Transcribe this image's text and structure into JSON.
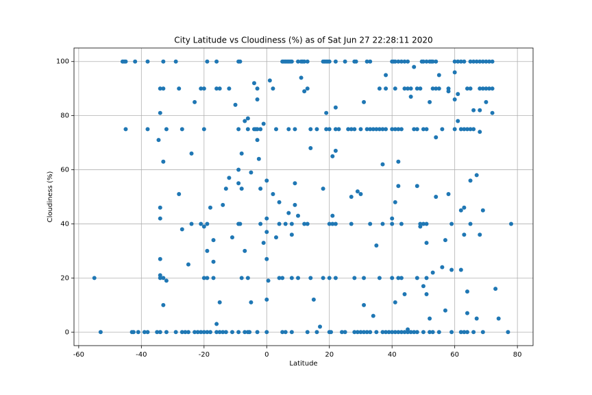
{
  "chart_data": {
    "type": "scatter",
    "title": "City Latitude vs Cloudiness (%) as of Sat Jun 27 22:28:11 2020",
    "x_label": "Latitude",
    "y_label": "Cloudiness (%)",
    "color": "#1f77b4",
    "grid": true,
    "xlim": [
      -61.5,
      85
    ],
    "ylim": [
      -5,
      105
    ],
    "xticks": [
      -60,
      -40,
      -20,
      0,
      20,
      40,
      60,
      80
    ],
    "yticks": [
      0,
      20,
      40,
      60,
      80,
      100
    ],
    "x": [
      -46,
      -45.5,
      -45,
      -42,
      -38,
      -33,
      -29,
      -19,
      -16,
      -9,
      -8.5,
      5,
      5.5,
      6,
      6.5,
      7,
      7.5,
      8,
      10,
      11,
      11.5,
      12,
      13,
      18,
      18.5,
      19,
      19.5,
      20,
      22,
      25,
      28,
      28.5,
      32,
      33,
      40,
      40.5,
      41,
      42,
      43,
      44,
      45,
      49.5,
      50,
      51,
      52,
      52.5,
      53,
      54,
      60,
      61,
      62,
      63,
      65,
      66,
      67,
      68,
      69,
      70,
      71,
      72,
      -45,
      -38,
      -32,
      -27,
      -20,
      -9,
      -6,
      -4,
      -3.5,
      -3,
      -2,
      3,
      7,
      9,
      14,
      16,
      19,
      20,
      22,
      23,
      26,
      27,
      28,
      30,
      32,
      33,
      34,
      35,
      36,
      37,
      38,
      40,
      41,
      42,
      43,
      47,
      48,
      50,
      51,
      56,
      60,
      62,
      63,
      64,
      65,
      66,
      -34,
      -33,
      -28,
      -21,
      -20,
      -16,
      -15,
      -12,
      -3,
      2,
      13,
      36,
      38,
      41,
      44,
      45,
      46,
      48,
      49,
      53,
      54,
      55,
      58,
      64,
      65,
      68,
      69,
      70,
      71,
      72,
      -43,
      -42.5,
      -41,
      -39,
      -38,
      -35,
      -34,
      -32,
      -29,
      -27,
      -26,
      -25,
      -23,
      -22,
      -21,
      -20,
      -19,
      -18,
      -16,
      -15,
      -14,
      -13,
      -11,
      -9,
      -7,
      -6,
      -5.5,
      -3,
      0,
      5,
      6,
      8,
      13,
      16,
      20,
      20.5,
      24,
      25,
      28,
      29,
      30,
      31,
      32,
      33,
      35,
      37,
      38,
      39,
      40,
      41,
      42,
      43,
      44,
      45,
      46,
      47,
      48,
      50,
      52,
      53,
      55,
      59,
      62,
      63,
      64,
      66,
      69,
      77,
      -24,
      -21,
      -19,
      -9,
      -8.5,
      -2,
      4,
      6,
      8,
      12,
      13,
      20,
      21,
      22,
      27,
      33,
      37,
      40,
      43,
      49,
      50,
      51,
      59,
      65,
      78,
      -55,
      -34,
      -33,
      -20,
      -19,
      -17,
      -8,
      -6,
      4,
      5,
      8,
      10,
      14,
      18,
      20,
      22,
      28,
      31,
      36,
      40,
      42,
      43,
      48,
      51,
      -53,
      -34.5,
      -34,
      -33,
      -34,
      -34,
      -34,
      -34,
      -33,
      -32,
      -28,
      -27,
      -25,
      -24,
      -23,
      -20,
      -19,
      -18,
      -17,
      -17,
      -16,
      -15,
      -14,
      -13,
      -12,
      -11,
      -10,
      -9,
      -9,
      -8,
      -8,
      -7,
      -7,
      -6,
      -5,
      -5,
      -4,
      -3,
      -3,
      -2.5,
      -2,
      -1,
      -1,
      0,
      0,
      0,
      0,
      0,
      0.5,
      1,
      2,
      3,
      4,
      7,
      8,
      9,
      9,
      10,
      11,
      12,
      14,
      15,
      17,
      18,
      19,
      21,
      21,
      22,
      22,
      27,
      29,
      30,
      31,
      31,
      34,
      35,
      37,
      38,
      40,
      41,
      41,
      42,
      42,
      44,
      45,
      46,
      47,
      48,
      49,
      50,
      51,
      51,
      52,
      52,
      53,
      54,
      54,
      55,
      56,
      57,
      58,
      58,
      57,
      59,
      60,
      60,
      61,
      61,
      62,
      62,
      63,
      63,
      64,
      64,
      65,
      66,
      67,
      67,
      68,
      68,
      68,
      69,
      70,
      72,
      73,
      74
    ],
    "values": [
      100,
      100,
      100,
      100,
      100,
      100,
      100,
      100,
      100,
      100,
      100,
      100,
      100,
      100,
      100,
      100,
      100,
      100,
      100,
      100,
      100,
      100,
      100,
      100,
      100,
      100,
      100,
      100,
      100,
      100,
      100,
      100,
      100,
      100,
      100,
      100,
      100,
      100,
      100,
      100,
      100,
      100,
      100,
      100,
      100,
      100,
      100,
      100,
      100,
      100,
      100,
      100,
      100,
      100,
      100,
      100,
      100,
      100,
      100,
      100,
      75,
      75,
      75,
      75,
      75,
      75,
      75,
      75,
      75,
      75,
      75,
      75,
      75,
      75,
      75,
      75,
      75,
      75,
      75,
      75,
      75,
      75,
      75,
      75,
      75,
      75,
      75,
      75,
      75,
      75,
      75,
      75,
      75,
      75,
      75,
      75,
      75,
      75,
      75,
      75,
      75,
      75,
      75,
      75,
      75,
      75,
      90,
      90,
      90,
      90,
      90,
      90,
      90,
      90,
      90,
      90,
      90,
      90,
      90,
      90,
      90,
      90,
      90,
      90,
      90,
      90,
      90,
      90,
      90,
      90,
      90,
      90,
      90,
      90,
      90,
      90,
      0,
      0,
      0,
      0,
      0,
      0,
      0,
      0,
      0,
      0,
      0,
      0,
      0,
      0,
      0,
      0,
      0,
      0,
      0,
      0,
      0,
      0,
      0,
      0,
      0,
      0,
      0,
      0,
      0,
      0,
      0,
      0,
      0,
      0,
      0,
      0,
      0,
      0,
      0,
      0,
      0,
      0,
      0,
      0,
      0,
      0,
      0,
      0,
      0,
      0,
      0,
      0,
      0,
      0,
      0,
      0,
      0,
      0,
      0,
      0,
      0,
      0,
      0,
      0,
      0,
      0,
      0,
      0,
      40,
      40,
      40,
      40,
      40,
      40,
      40,
      40,
      40,
      40,
      40,
      40,
      40,
      40,
      40,
      40,
      40,
      40,
      40,
      40,
      40,
      40,
      40,
      40,
      40,
      20,
      20,
      20,
      20,
      20,
      20,
      20,
      20,
      20,
      20,
      20,
      20,
      20,
      20,
      20,
      20,
      20,
      20,
      20,
      20,
      20,
      20,
      20,
      20,
      0,
      71,
      81,
      63,
      46,
      42,
      27,
      21,
      10,
      19,
      51,
      38,
      25,
      66,
      85,
      39,
      30,
      46,
      34,
      26,
      3,
      11,
      47,
      53,
      57,
      35,
      84,
      60,
      55,
      66,
      53,
      30,
      78,
      79,
      59,
      11,
      92,
      86,
      71,
      64,
      53,
      77,
      33,
      42,
      56,
      37,
      27,
      12,
      19,
      93,
      51,
      35,
      48,
      44,
      36,
      47,
      55,
      43,
      94,
      89,
      68,
      12,
      2,
      53,
      81,
      43,
      65,
      67,
      83,
      50,
      52,
      51,
      10,
      85,
      6,
      32,
      62,
      95,
      42,
      11,
      48,
      54,
      63,
      14,
      1,
      87,
      98,
      54,
      39,
      17,
      14,
      33,
      5,
      85,
      22,
      50,
      72,
      95,
      24,
      8,
      89,
      51,
      34,
      23,
      96,
      86,
      88,
      78,
      45,
      23,
      36,
      46,
      7,
      15,
      56,
      82,
      58,
      5,
      74,
      82,
      36,
      45,
      85,
      81,
      16,
      5
    ]
  }
}
